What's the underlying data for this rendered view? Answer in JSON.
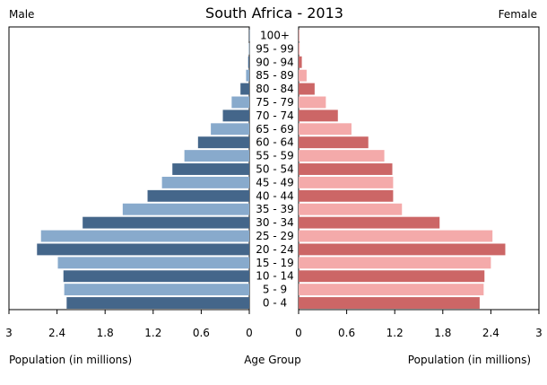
{
  "chart_data": {
    "type": "bar",
    "title": "South Africa - 2013",
    "left_label": "Male",
    "right_label": "Female",
    "xlabel_left": "Population (in millions)",
    "xlabel_center": "Age Group",
    "xlabel_right": "Population (in millions)",
    "xlim": [
      0,
      3
    ],
    "ticks": [
      "3",
      "2.4",
      "1.8",
      "1.2",
      "0.6",
      "0"
    ],
    "ticks_right": [
      "0",
      "0.6",
      "1.2",
      "1.8",
      "2.4",
      "3"
    ],
    "categories": [
      "100+",
      "95 - 99",
      "90 - 94",
      "85 - 89",
      "80 - 84",
      "75 - 79",
      "70 - 74",
      "65 - 69",
      "60 - 64",
      "55 - 59",
      "50 - 54",
      "45 - 49",
      "40 - 44",
      "35 - 39",
      "30 - 34",
      "25 - 29",
      "20 - 24",
      "15 - 19",
      "10 - 14",
      "5 - 9",
      "0 - 4"
    ],
    "series": [
      {
        "name": "Male",
        "values": [
          0.002,
          0.005,
          0.014,
          0.04,
          0.11,
          0.22,
          0.33,
          0.48,
          0.64,
          0.81,
          0.96,
          1.09,
          1.27,
          1.58,
          2.08,
          2.6,
          2.65,
          2.39,
          2.32,
          2.31,
          2.28
        ]
      },
      {
        "name": "Female",
        "values": [
          0.004,
          0.013,
          0.04,
          0.1,
          0.2,
          0.34,
          0.49,
          0.66,
          0.87,
          1.07,
          1.17,
          1.18,
          1.18,
          1.29,
          1.76,
          2.42,
          2.58,
          2.4,
          2.32,
          2.31,
          2.26
        ]
      }
    ],
    "colors": {
      "male_dark": "#44668a",
      "male_light": "#88aacc",
      "female_dark": "#cc6666",
      "female_light": "#f4aaaa",
      "frame": "#000000",
      "background": "#ffffff"
    }
  }
}
